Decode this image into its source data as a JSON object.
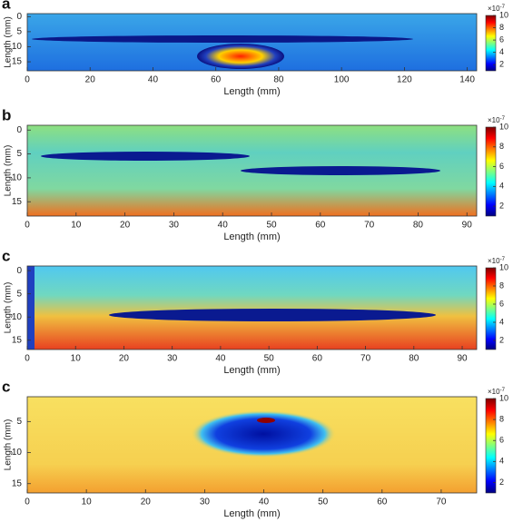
{
  "chart_data": [
    {
      "type": "heatmap",
      "panel_label": "a",
      "xlabel": "Length (mm)",
      "ylabel": "Length (mm)",
      "xlim": [
        0,
        143
      ],
      "xticks": [
        0,
        20,
        40,
        60,
        80,
        100,
        120,
        140
      ],
      "ylim": [
        -1,
        18
      ],
      "yticks": [
        0,
        5,
        10,
        15
      ],
      "y_reversed": true,
      "colormap": "jet",
      "clim": [
        1,
        10
      ],
      "cticks": [
        2,
        4,
        6,
        8,
        10
      ],
      "colorbar_multiplier": "×10",
      "colorbar_exponent": "-7"
    },
    {
      "type": "heatmap",
      "panel_label": "b",
      "xlabel": "Length (mm)",
      "ylabel": "Length (mm)",
      "xlim": [
        0,
        92
      ],
      "xticks": [
        0,
        10,
        20,
        30,
        40,
        50,
        60,
        70,
        80,
        90
      ],
      "ylim": [
        -1,
        18
      ],
      "yticks": [
        0,
        5,
        10,
        15
      ],
      "y_reversed": true,
      "colormap": "jet",
      "clim": [
        1,
        10
      ],
      "cticks": [
        2,
        4,
        6,
        8,
        10
      ],
      "colorbar_multiplier": "×10",
      "colorbar_exponent": "-7"
    },
    {
      "type": "heatmap",
      "panel_label": "c",
      "xlabel": "Length (mm)",
      "ylabel": "Length (mm)",
      "xlim": [
        0,
        93
      ],
      "xticks": [
        0,
        10,
        20,
        30,
        40,
        50,
        60,
        70,
        80,
        90
      ],
      "ylim": [
        -1,
        17
      ],
      "yticks": [
        0,
        5,
        10,
        15
      ],
      "y_reversed": true,
      "colormap": "jet",
      "clim": [
        1,
        10
      ],
      "cticks": [
        2,
        4,
        6,
        8,
        10
      ],
      "colorbar_multiplier": "×10",
      "colorbar_exponent": "-7"
    },
    {
      "type": "heatmap",
      "panel_label": "c",
      "xlabel": "Length (mm)",
      "ylabel": "Length (mm)",
      "xlim": [
        0,
        76
      ],
      "xticks": [
        0,
        10,
        20,
        30,
        40,
        50,
        60,
        70
      ],
      "ylim": [
        1,
        16.5
      ],
      "yticks": [
        5,
        10,
        15
      ],
      "y_reversed": true,
      "colormap": "jet",
      "clim": [
        1,
        10
      ],
      "cticks": [
        2,
        4,
        6,
        8,
        10
      ],
      "colorbar_multiplier": "×10",
      "colorbar_exponent": "-7"
    }
  ]
}
